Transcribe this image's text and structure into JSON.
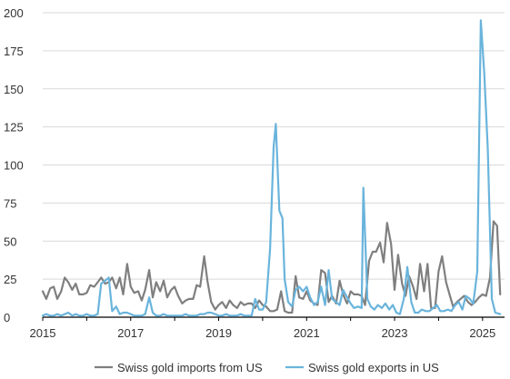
{
  "chart_data": {
    "type": "line",
    "title": "",
    "xlabel": "",
    "ylabel": "",
    "xlim": [
      2015.0,
      2025.5
    ],
    "ylim": [
      0,
      200
    ],
    "grid": true,
    "legend_position": "bottom",
    "y_ticks": [
      0,
      25,
      50,
      75,
      100,
      125,
      150,
      175,
      200
    ],
    "y_tick_labels": [
      "0",
      "25",
      "50",
      "75",
      "100",
      "125",
      "150",
      "175",
      "200"
    ],
    "x_ticks": [
      2015,
      2017,
      2019,
      2021,
      2023,
      2025
    ],
    "x_tick_labels": [
      "2015",
      "2017",
      "2019",
      "2021",
      "2023",
      "2025"
    ],
    "series": [
      {
        "name": "Swiss gold imports from US",
        "color": "#7f7f7f",
        "points": [
          [
            2015.0,
            17
          ],
          [
            2015.08,
            12
          ],
          [
            2015.17,
            19
          ],
          [
            2015.25,
            20
          ],
          [
            2015.33,
            12
          ],
          [
            2015.42,
            17
          ],
          [
            2015.5,
            26
          ],
          [
            2015.58,
            23
          ],
          [
            2015.67,
            18
          ],
          [
            2015.75,
            22
          ],
          [
            2015.83,
            15
          ],
          [
            2015.92,
            15
          ],
          [
            2016.0,
            16
          ],
          [
            2016.08,
            21
          ],
          [
            2016.17,
            20
          ],
          [
            2016.25,
            23
          ],
          [
            2016.33,
            26
          ],
          [
            2016.42,
            22
          ],
          [
            2016.5,
            23
          ],
          [
            2016.58,
            26
          ],
          [
            2016.67,
            19
          ],
          [
            2016.75,
            26
          ],
          [
            2016.83,
            15
          ],
          [
            2016.92,
            35
          ],
          [
            2017.0,
            20
          ],
          [
            2017.08,
            16
          ],
          [
            2017.17,
            17
          ],
          [
            2017.25,
            11
          ],
          [
            2017.33,
            18
          ],
          [
            2017.42,
            31
          ],
          [
            2017.5,
            13
          ],
          [
            2017.58,
            23
          ],
          [
            2017.67,
            17
          ],
          [
            2017.75,
            24
          ],
          [
            2017.83,
            13
          ],
          [
            2017.92,
            18
          ],
          [
            2018.0,
            20
          ],
          [
            2018.08,
            14
          ],
          [
            2018.17,
            9
          ],
          [
            2018.25,
            11
          ],
          [
            2018.33,
            12
          ],
          [
            2018.42,
            12
          ],
          [
            2018.5,
            21
          ],
          [
            2018.58,
            20
          ],
          [
            2018.67,
            40
          ],
          [
            2018.75,
            23
          ],
          [
            2018.83,
            10
          ],
          [
            2018.92,
            5
          ],
          [
            2019.0,
            8
          ],
          [
            2019.08,
            10
          ],
          [
            2019.17,
            6
          ],
          [
            2019.25,
            11
          ],
          [
            2019.33,
            8
          ],
          [
            2019.42,
            6
          ],
          [
            2019.5,
            10
          ],
          [
            2019.58,
            8
          ],
          [
            2019.67,
            9
          ],
          [
            2019.75,
            9
          ],
          [
            2019.83,
            6
          ],
          [
            2019.92,
            11
          ],
          [
            2020.0,
            8
          ],
          [
            2020.08,
            7
          ],
          [
            2020.17,
            4
          ],
          [
            2020.25,
            4
          ],
          [
            2020.33,
            5
          ],
          [
            2020.42,
            17
          ],
          [
            2020.5,
            4
          ],
          [
            2020.58,
            3
          ],
          [
            2020.67,
            3
          ],
          [
            2020.75,
            27
          ],
          [
            2020.83,
            13
          ],
          [
            2020.92,
            12
          ],
          [
            2021.0,
            17
          ],
          [
            2021.08,
            11
          ],
          [
            2021.17,
            9
          ],
          [
            2021.25,
            8
          ],
          [
            2021.33,
            31
          ],
          [
            2021.42,
            29
          ],
          [
            2021.5,
            10
          ],
          [
            2021.58,
            14
          ],
          [
            2021.67,
            9
          ],
          [
            2021.75,
            24
          ],
          [
            2021.83,
            15
          ],
          [
            2021.92,
            9
          ],
          [
            2022.0,
            17
          ],
          [
            2022.08,
            15
          ],
          [
            2022.17,
            15
          ],
          [
            2022.25,
            14
          ],
          [
            2022.33,
            8
          ],
          [
            2022.42,
            37
          ],
          [
            2022.5,
            43
          ],
          [
            2022.58,
            43
          ],
          [
            2022.67,
            49
          ],
          [
            2022.75,
            36
          ],
          [
            2022.83,
            62
          ],
          [
            2022.92,
            48
          ],
          [
            2023.0,
            18
          ],
          [
            2023.08,
            41
          ],
          [
            2023.17,
            22
          ],
          [
            2023.25,
            14
          ],
          [
            2023.33,
            27
          ],
          [
            2023.42,
            20
          ],
          [
            2023.5,
            12
          ],
          [
            2023.58,
            35
          ],
          [
            2023.67,
            17
          ],
          [
            2023.75,
            35
          ],
          [
            2023.83,
            6
          ],
          [
            2023.92,
            6
          ],
          [
            2024.0,
            30
          ],
          [
            2024.08,
            40
          ],
          [
            2024.17,
            23
          ],
          [
            2024.25,
            15
          ],
          [
            2024.33,
            7
          ],
          [
            2024.42,
            10
          ],
          [
            2024.5,
            12
          ],
          [
            2024.58,
            14
          ],
          [
            2024.67,
            10
          ],
          [
            2024.75,
            8
          ],
          [
            2024.83,
            10
          ],
          [
            2024.92,
            13
          ],
          [
            2025.0,
            15
          ],
          [
            2025.08,
            14
          ],
          [
            2025.17,
            26
          ],
          [
            2025.25,
            63
          ],
          [
            2025.33,
            60
          ],
          [
            2025.4,
            15
          ]
        ]
      },
      {
        "name": "Swiss gold exports in US",
        "color": "#6ab4dc",
        "points": [
          [
            2015.0,
            1
          ],
          [
            2015.08,
            2
          ],
          [
            2015.17,
            1
          ],
          [
            2015.25,
            1
          ],
          [
            2015.33,
            2
          ],
          [
            2015.42,
            1
          ],
          [
            2015.5,
            2
          ],
          [
            2015.58,
            3
          ],
          [
            2015.67,
            1
          ],
          [
            2015.75,
            2
          ],
          [
            2015.83,
            1
          ],
          [
            2015.92,
            1
          ],
          [
            2016.0,
            2
          ],
          [
            2016.08,
            1
          ],
          [
            2016.17,
            1
          ],
          [
            2016.25,
            2
          ],
          [
            2016.33,
            22
          ],
          [
            2016.42,
            24
          ],
          [
            2016.5,
            26
          ],
          [
            2016.58,
            4
          ],
          [
            2016.67,
            7
          ],
          [
            2016.75,
            2
          ],
          [
            2016.83,
            3
          ],
          [
            2016.92,
            3
          ],
          [
            2017.0,
            2
          ],
          [
            2017.08,
            1
          ],
          [
            2017.17,
            1
          ],
          [
            2017.25,
            1
          ],
          [
            2017.33,
            2
          ],
          [
            2017.42,
            13
          ],
          [
            2017.5,
            3
          ],
          [
            2017.58,
            1
          ],
          [
            2017.67,
            1
          ],
          [
            2017.75,
            2
          ],
          [
            2017.83,
            1
          ],
          [
            2017.92,
            1
          ],
          [
            2018.0,
            1
          ],
          [
            2018.08,
            1
          ],
          [
            2018.17,
            1
          ],
          [
            2018.25,
            2
          ],
          [
            2018.33,
            1
          ],
          [
            2018.42,
            1
          ],
          [
            2018.5,
            1
          ],
          [
            2018.58,
            2
          ],
          [
            2018.67,
            2
          ],
          [
            2018.75,
            3
          ],
          [
            2018.83,
            3
          ],
          [
            2018.92,
            2
          ],
          [
            2019.0,
            1
          ],
          [
            2019.08,
            1
          ],
          [
            2019.17,
            2
          ],
          [
            2019.25,
            1
          ],
          [
            2019.33,
            1
          ],
          [
            2019.42,
            1
          ],
          [
            2019.5,
            2
          ],
          [
            2019.58,
            1
          ],
          [
            2019.67,
            1
          ],
          [
            2019.75,
            1
          ],
          [
            2019.83,
            12
          ],
          [
            2019.92,
            5
          ],
          [
            2020.0,
            5
          ],
          [
            2020.08,
            10
          ],
          [
            2020.17,
            45
          ],
          [
            2020.25,
            112
          ],
          [
            2020.3,
            127
          ],
          [
            2020.38,
            70
          ],
          [
            2020.45,
            65
          ],
          [
            2020.5,
            25
          ],
          [
            2020.58,
            10
          ],
          [
            2020.67,
            7
          ],
          [
            2020.75,
            18
          ],
          [
            2020.83,
            20
          ],
          [
            2020.92,
            17
          ],
          [
            2021.0,
            20
          ],
          [
            2021.08,
            13
          ],
          [
            2021.17,
            8
          ],
          [
            2021.25,
            10
          ],
          [
            2021.33,
            20
          ],
          [
            2021.42,
            8
          ],
          [
            2021.5,
            31
          ],
          [
            2021.58,
            12
          ],
          [
            2021.67,
            10
          ],
          [
            2021.75,
            8
          ],
          [
            2021.83,
            18
          ],
          [
            2021.92,
            13
          ],
          [
            2022.0,
            9
          ],
          [
            2022.08,
            6
          ],
          [
            2022.17,
            7
          ],
          [
            2022.25,
            6
          ],
          [
            2022.29,
            85
          ],
          [
            2022.38,
            12
          ],
          [
            2022.46,
            7
          ],
          [
            2022.54,
            5
          ],
          [
            2022.62,
            8
          ],
          [
            2022.71,
            6
          ],
          [
            2022.79,
            9
          ],
          [
            2022.88,
            5
          ],
          [
            2022.96,
            8
          ],
          [
            2023.04,
            3
          ],
          [
            2023.12,
            2
          ],
          [
            2023.21,
            12
          ],
          [
            2023.29,
            33
          ],
          [
            2023.38,
            10
          ],
          [
            2023.46,
            3
          ],
          [
            2023.54,
            3
          ],
          [
            2023.62,
            5
          ],
          [
            2023.71,
            4
          ],
          [
            2023.79,
            4
          ],
          [
            2023.88,
            6
          ],
          [
            2023.96,
            8
          ],
          [
            2024.04,
            4
          ],
          [
            2024.12,
            4
          ],
          [
            2024.21,
            5
          ],
          [
            2024.29,
            4
          ],
          [
            2024.38,
            8
          ],
          [
            2024.46,
            10
          ],
          [
            2024.54,
            5
          ],
          [
            2024.62,
            14
          ],
          [
            2024.71,
            12
          ],
          [
            2024.79,
            9
          ],
          [
            2024.88,
            30
          ],
          [
            2024.96,
            195
          ],
          [
            2025.04,
            160
          ],
          [
            2025.12,
            110
          ],
          [
            2025.21,
            12
          ],
          [
            2025.29,
            3
          ],
          [
            2025.4,
            2
          ]
        ]
      }
    ]
  }
}
